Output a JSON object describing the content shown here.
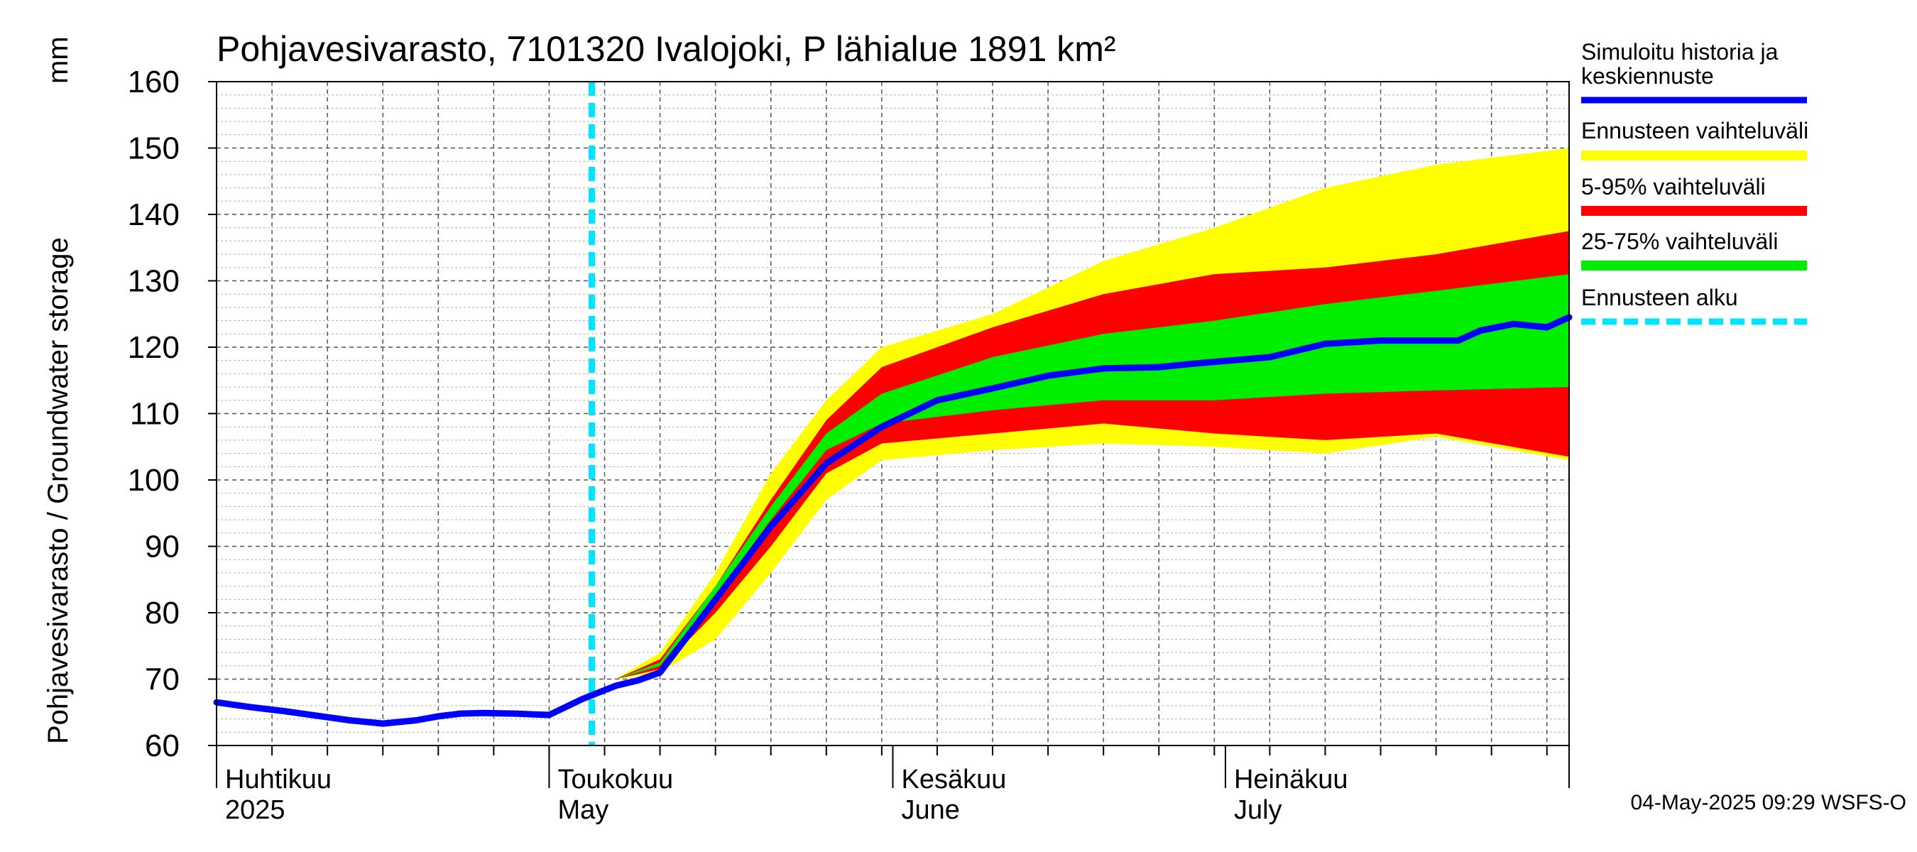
{
  "chart_data": {
    "type": "area",
    "title": "Pohjavesivarasto, 7101320 Ivalojoki, P lähialue 1891 km²",
    "ylabel": "Pohjavesivarasto / Groundwater storage",
    "yunit": "mm",
    "ylim": [
      60,
      160
    ],
    "yticks": [
      60,
      70,
      80,
      90,
      100,
      110,
      120,
      130,
      140,
      150,
      160
    ],
    "grid": true,
    "x_start": "2025-03-31",
    "x_end": "2025-07-31",
    "forecast_start": "2025-05-04",
    "month_labels": [
      {
        "date": "2025-04-01",
        "fi": "Huhtikuu",
        "en": "2025"
      },
      {
        "date": "2025-05-01",
        "fi": "Toukokuu",
        "en": "May"
      },
      {
        "date": "2025-06-01",
        "fi": "Kesäkuu",
        "en": "June"
      },
      {
        "date": "2025-07-01",
        "fi": "Heinäkuu",
        "en": "July"
      }
    ],
    "bands": [
      {
        "name": "Ennusteen vaihteluväli",
        "color": "#ffff00",
        "days": [
          33,
          36,
          40,
          45,
          50,
          55,
          60,
          70,
          80,
          90,
          100,
          110,
          122
        ],
        "low": [
          67,
          70,
          71,
          76,
          86,
          97,
          103,
          104.5,
          105.5,
          105,
          104,
          106.5,
          103
        ],
        "high": [
          67,
          70,
          74,
          86,
          101,
          112,
          120,
          125,
          133,
          138,
          144,
          147.5,
          150
        ]
      },
      {
        "name": "5-95% vaihteluväli",
        "color": "#ff0000",
        "days": [
          33,
          36,
          40,
          45,
          50,
          55,
          60,
          70,
          80,
          90,
          100,
          110,
          122
        ],
        "low": [
          67,
          70,
          71.5,
          80,
          90,
          101,
          105.5,
          107,
          108.5,
          107,
          106,
          107,
          103.5
        ],
        "high": [
          67,
          70,
          73,
          84,
          97,
          109,
          117,
          123,
          128,
          131,
          132,
          134,
          137.5
        ]
      },
      {
        "name": "25-75% vaihteluväli",
        "color": "#00ee00",
        "days": [
          33,
          36,
          40,
          45,
          50,
          55,
          60,
          70,
          80,
          90,
          100,
          110,
          122
        ],
        "low": [
          67,
          70,
          72,
          82.5,
          94,
          104.5,
          108.5,
          110.5,
          112,
          112,
          113,
          113.5,
          114
        ],
        "high": [
          67,
          70,
          72.5,
          84,
          96,
          107,
          113,
          118.5,
          122,
          124,
          126.5,
          128.5,
          131
        ]
      }
    ],
    "series": [
      {
        "name": "Simuloitu historia ja keskiennuste",
        "color": "#0000ff",
        "days": [
          0,
          3,
          6,
          9,
          12,
          15,
          18,
          20,
          22,
          24,
          27,
          30,
          33,
          36,
          38,
          40,
          45,
          50,
          55,
          60,
          65,
          70,
          75,
          80,
          85,
          88,
          95,
          100,
          105,
          108,
          112,
          114,
          117,
          120,
          122
        ],
        "values": [
          66.5,
          65.8,
          65.2,
          64.5,
          63.8,
          63.3,
          63.8,
          64.4,
          64.8,
          64.9,
          64.8,
          64.6,
          67,
          69,
          69.8,
          71,
          82,
          93,
          102.5,
          108,
          112,
          113.8,
          115.7,
          116.8,
          117,
          117.5,
          118.5,
          120.5,
          121,
          121,
          121,
          122.5,
          123.5,
          123,
          124.5
        ]
      }
    ],
    "legend_position": "right"
  },
  "legend": {
    "history_line1": "Simuloitu historia ja",
    "history_line2": "keskiennuste",
    "range": "Ennusteen vaihteluväli",
    "p5_95": "5-95% vaihteluväli",
    "p25_75": "25-75% vaihteluväli",
    "forecast_start": "Ennusteen alku"
  },
  "colors": {
    "forecast_line": "#00e5ff"
  },
  "footer": "04-May-2025 09:29 WSFS-O"
}
